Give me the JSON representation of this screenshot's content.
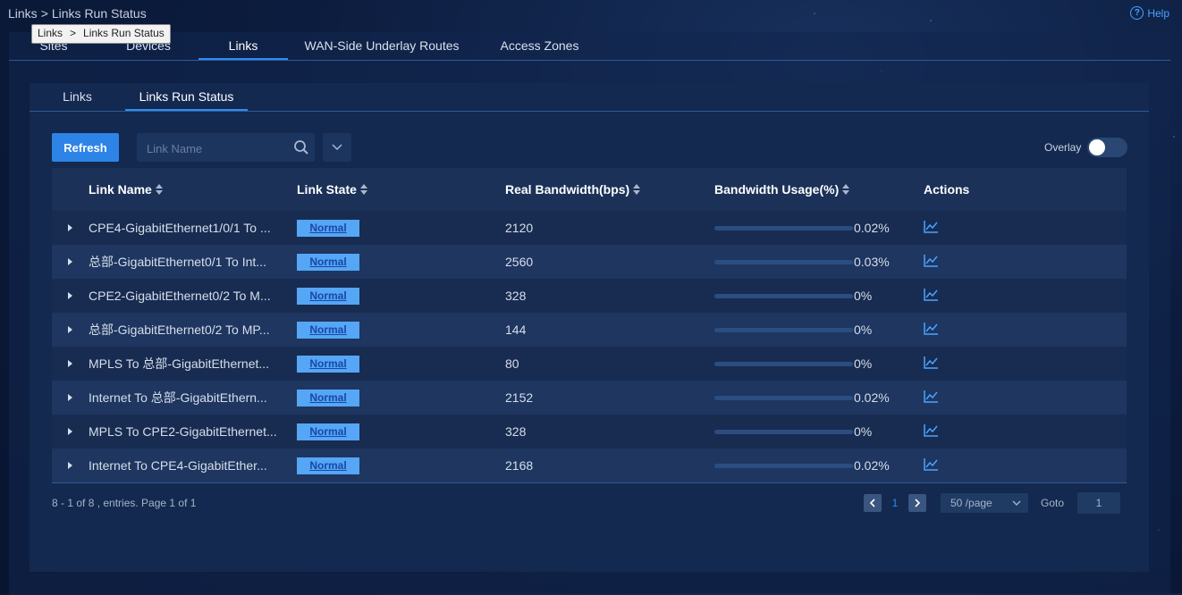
{
  "breadcrumb": {
    "parent": "Links",
    "separator": ">",
    "current": "Links Run Status"
  },
  "tooltip": {
    "parent": "Links",
    "separator": ">",
    "current": "Links Run Status"
  },
  "help": {
    "label": "Help",
    "icon": "question-icon"
  },
  "top_tabs": [
    {
      "label": "Sites",
      "active": false
    },
    {
      "label": "Devices",
      "active": false
    },
    {
      "label": "Links",
      "active": true
    },
    {
      "label": "WAN-Side Underlay Routes",
      "active": false
    },
    {
      "label": "Access Zones",
      "active": false
    }
  ],
  "sub_tabs": [
    {
      "label": "Links",
      "active": false
    },
    {
      "label": "Links Run Status",
      "active": true
    }
  ],
  "toolbar": {
    "refresh_label": "Refresh",
    "search_placeholder": "Link Name",
    "search_value": "",
    "overlay_label": "Overlay",
    "overlay_on": false
  },
  "table": {
    "headers": [
      "Link Name",
      "Link State",
      "Real Bandwidth(bps)",
      "Bandwidth Usage(%)",
      "Actions"
    ],
    "rows": [
      {
        "name": "CPE4-GigabitEthernet1/0/1 To ...",
        "state": "Normal",
        "bandwidth": "2120",
        "usage": "0.02%",
        "usage_value": 0.02
      },
      {
        "name": "总部-GigabitEthernet0/1 To Int...",
        "state": "Normal",
        "bandwidth": "2560",
        "usage": "0.03%",
        "usage_value": 0.03
      },
      {
        "name": "CPE2-GigabitEthernet0/2 To M...",
        "state": "Normal",
        "bandwidth": "328",
        "usage": "0%",
        "usage_value": 0
      },
      {
        "name": "总部-GigabitEthernet0/2 To MP...",
        "state": "Normal",
        "bandwidth": "144",
        "usage": "0%",
        "usage_value": 0
      },
      {
        "name": "MPLS To 总部-GigabitEthernet...",
        "state": "Normal",
        "bandwidth": "80",
        "usage": "0%",
        "usage_value": 0
      },
      {
        "name": "Internet To 总部-GigabitEthern...",
        "state": "Normal",
        "bandwidth": "2152",
        "usage": "0.02%",
        "usage_value": 0.02
      },
      {
        "name": "MPLS To CPE2-GigabitEthernet...",
        "state": "Normal",
        "bandwidth": "328",
        "usage": "0%",
        "usage_value": 0
      },
      {
        "name": "Internet To CPE4-GigabitEther...",
        "state": "Normal",
        "bandwidth": "2168",
        "usage": "0.02%",
        "usage_value": 0.02
      }
    ],
    "action_icon": "line-chart-icon"
  },
  "footer": {
    "summary": "8 - 1 of 8 , entries. Page 1 of 1",
    "current_page": "1",
    "page_size": "50 /page",
    "goto_label": "Goto",
    "goto_value": "1"
  },
  "colors": {
    "accent": "#2d8cf0",
    "badge_bg": "#55a6f5",
    "badge_text": "#1847a8",
    "background": "#0c1c3e"
  }
}
